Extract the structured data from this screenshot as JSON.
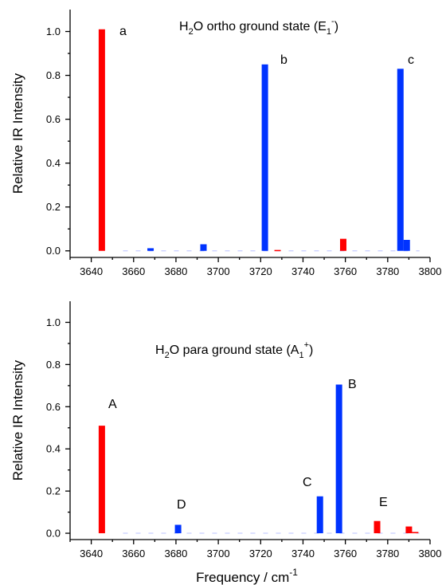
{
  "colors": {
    "red": "#ff0000",
    "blue": "#0033ff"
  },
  "chart_data": [
    {
      "type": "bar",
      "title_parts": {
        "base": "H",
        "sub1": "2",
        "mid": "O ortho ground state (E",
        "sub2": "1",
        "sup": "-",
        "end": ")"
      },
      "ylabel": "Relative IR Intensity",
      "xlabel": "",
      "xlim": [
        3630,
        3800
      ],
      "ylim": [
        -0.03,
        1.1
      ],
      "xticks": [
        "3640",
        "3660",
        "3680",
        "3700",
        "3720",
        "3740",
        "3760",
        "3780",
        "3800"
      ],
      "yticks": [
        "0.0",
        "0.2",
        "0.4",
        "0.6",
        "0.8",
        "1.0"
      ],
      "bars": [
        {
          "x": 3645,
          "y": 1.01,
          "color": "red",
          "label": "a"
        },
        {
          "x": 3668,
          "y": 0.012,
          "color": "blue"
        },
        {
          "x": 3693,
          "y": 0.03,
          "color": "blue"
        },
        {
          "x": 3722,
          "y": 0.85,
          "color": "blue",
          "label": "b"
        },
        {
          "x": 3728,
          "y": 0.004,
          "color": "red"
        },
        {
          "x": 3759,
          "y": 0.055,
          "color": "red"
        },
        {
          "x": 3786,
          "y": 0.83,
          "color": "blue",
          "label": "c"
        },
        {
          "x": 3789,
          "y": 0.05,
          "color": "blue"
        }
      ]
    },
    {
      "type": "bar",
      "title_parts": {
        "base": "H",
        "sub1": "2",
        "mid": "O para ground state (A",
        "sub2": "1",
        "sup": "+",
        "end": ")"
      },
      "ylabel": "Relative IR Intensity",
      "xlabel_parts": {
        "base": "Frequency / cm",
        "sup": "-1"
      },
      "xlim": [
        3630,
        3800
      ],
      "ylim": [
        -0.03,
        1.1
      ],
      "xticks": [
        "3640",
        "3660",
        "3680",
        "3700",
        "3720",
        "3740",
        "3760",
        "3780",
        "3800"
      ],
      "yticks": [
        "0.0",
        "0.2",
        "0.4",
        "0.6",
        "0.8",
        "1.0"
      ],
      "bars": [
        {
          "x": 3645,
          "y": 0.51,
          "color": "red",
          "label": "A"
        },
        {
          "x": 3681,
          "y": 0.04,
          "color": "blue",
          "label": "D"
        },
        {
          "x": 3748,
          "y": 0.175,
          "color": "blue",
          "label": "C"
        },
        {
          "x": 3757,
          "y": 0.705,
          "color": "blue",
          "label": "B"
        },
        {
          "x": 3775,
          "y": 0.058,
          "color": "red",
          "label": "E"
        },
        {
          "x": 3790,
          "y": 0.032,
          "color": "red"
        },
        {
          "x": 3793,
          "y": 0.006,
          "color": "red"
        }
      ]
    }
  ]
}
